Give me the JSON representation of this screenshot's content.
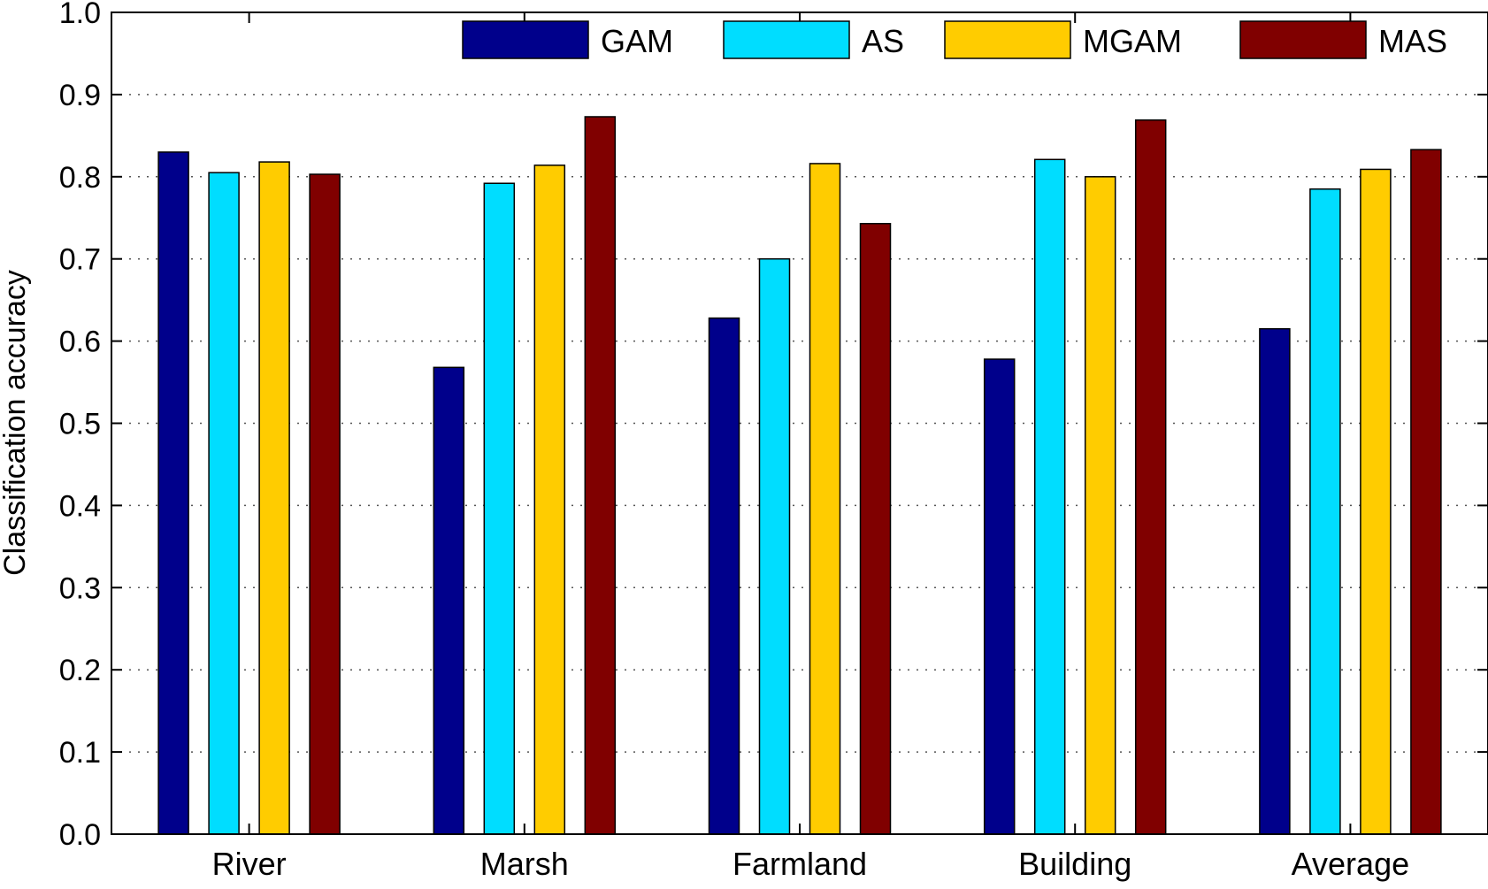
{
  "chart_data": {
    "type": "bar",
    "title": "",
    "xlabel": "",
    "ylabel": "Classification accuracy",
    "ylim": [
      0,
      1.0
    ],
    "yticks": [
      "0.0",
      "0.1",
      "0.2",
      "0.3",
      "0.4",
      "0.5",
      "0.6",
      "0.7",
      "0.8",
      "0.9",
      "1.0"
    ],
    "grid": "horizontal dotted",
    "legend_position": "top",
    "categories": [
      "River",
      "Marsh",
      "Farmland",
      "Building",
      "Average"
    ],
    "series": [
      {
        "name": "GAM",
        "color": "#00008B",
        "values": [
          0.83,
          0.568,
          0.628,
          0.578,
          0.615
        ]
      },
      {
        "name": "AS",
        "color": "#00DDFF",
        "values": [
          0.805,
          0.792,
          0.7,
          0.821,
          0.785
        ]
      },
      {
        "name": "MGAM",
        "color": "#FFCC00",
        "values": [
          0.818,
          0.814,
          0.816,
          0.8,
          0.809
        ]
      },
      {
        "name": "MAS",
        "color": "#800000",
        "values": [
          0.803,
          0.873,
          0.743,
          0.869,
          0.833
        ]
      }
    ]
  }
}
